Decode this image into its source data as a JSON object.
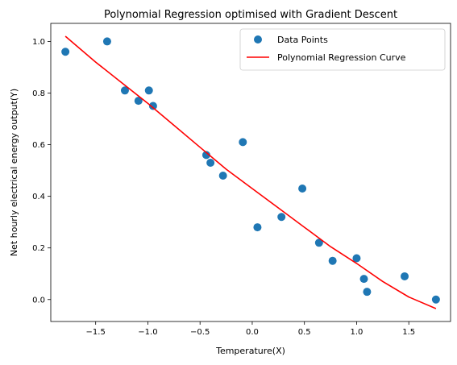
{
  "chart_data": {
    "type": "scatter",
    "title": "Polynomial Regression optimised with Gradient Descent",
    "xlabel": "Temperature(X)",
    "ylabel": "Net hourly electrical energy output(Y)",
    "xlim": [
      -1.93,
      1.9
    ],
    "ylim": [
      -0.085,
      1.07
    ],
    "x_ticks": [
      -1.5,
      -1.0,
      -0.5,
      0.0,
      0.5,
      1.0,
      1.5
    ],
    "x_tick_labels": [
      "−1.5",
      "−1.0",
      "−0.5",
      "0.0",
      "0.5",
      "1.0",
      "1.5"
    ],
    "y_ticks": [
      0.0,
      0.2,
      0.4,
      0.6,
      0.8,
      1.0
    ],
    "y_tick_labels": [
      "0.0",
      "0.2",
      "0.4",
      "0.6",
      "0.8",
      "1.0"
    ],
    "grid": false,
    "legend_position": "top-right",
    "series": [
      {
        "name": "Data Points",
        "kind": "scatter",
        "color": "#1f77b4",
        "x": [
          -1.79,
          -1.39,
          -1.22,
          -1.09,
          -0.99,
          -0.95,
          -0.44,
          -0.4,
          -0.28,
          -0.09,
          0.05,
          0.28,
          0.48,
          0.64,
          0.77,
          1.0,
          1.07,
          1.1,
          1.46,
          1.76
        ],
        "y": [
          0.96,
          1.0,
          0.81,
          0.77,
          0.81,
          0.75,
          0.56,
          0.53,
          0.48,
          0.61,
          0.28,
          0.32,
          0.43,
          0.22,
          0.15,
          0.16,
          0.08,
          0.03,
          0.09,
          0.0
        ]
      },
      {
        "name": "Polynomial Regression Curve",
        "kind": "line",
        "color": "#ff0000",
        "x": [
          -1.79,
          -1.5,
          -1.25,
          -1.0,
          -0.75,
          -0.5,
          -0.25,
          0.0,
          0.25,
          0.5,
          0.75,
          1.0,
          1.25,
          1.5,
          1.76
        ],
        "y": [
          1.02,
          0.92,
          0.84,
          0.76,
          0.675,
          0.59,
          0.505,
          0.43,
          0.355,
          0.28,
          0.205,
          0.14,
          0.07,
          0.01,
          -0.035
        ]
      }
    ]
  }
}
